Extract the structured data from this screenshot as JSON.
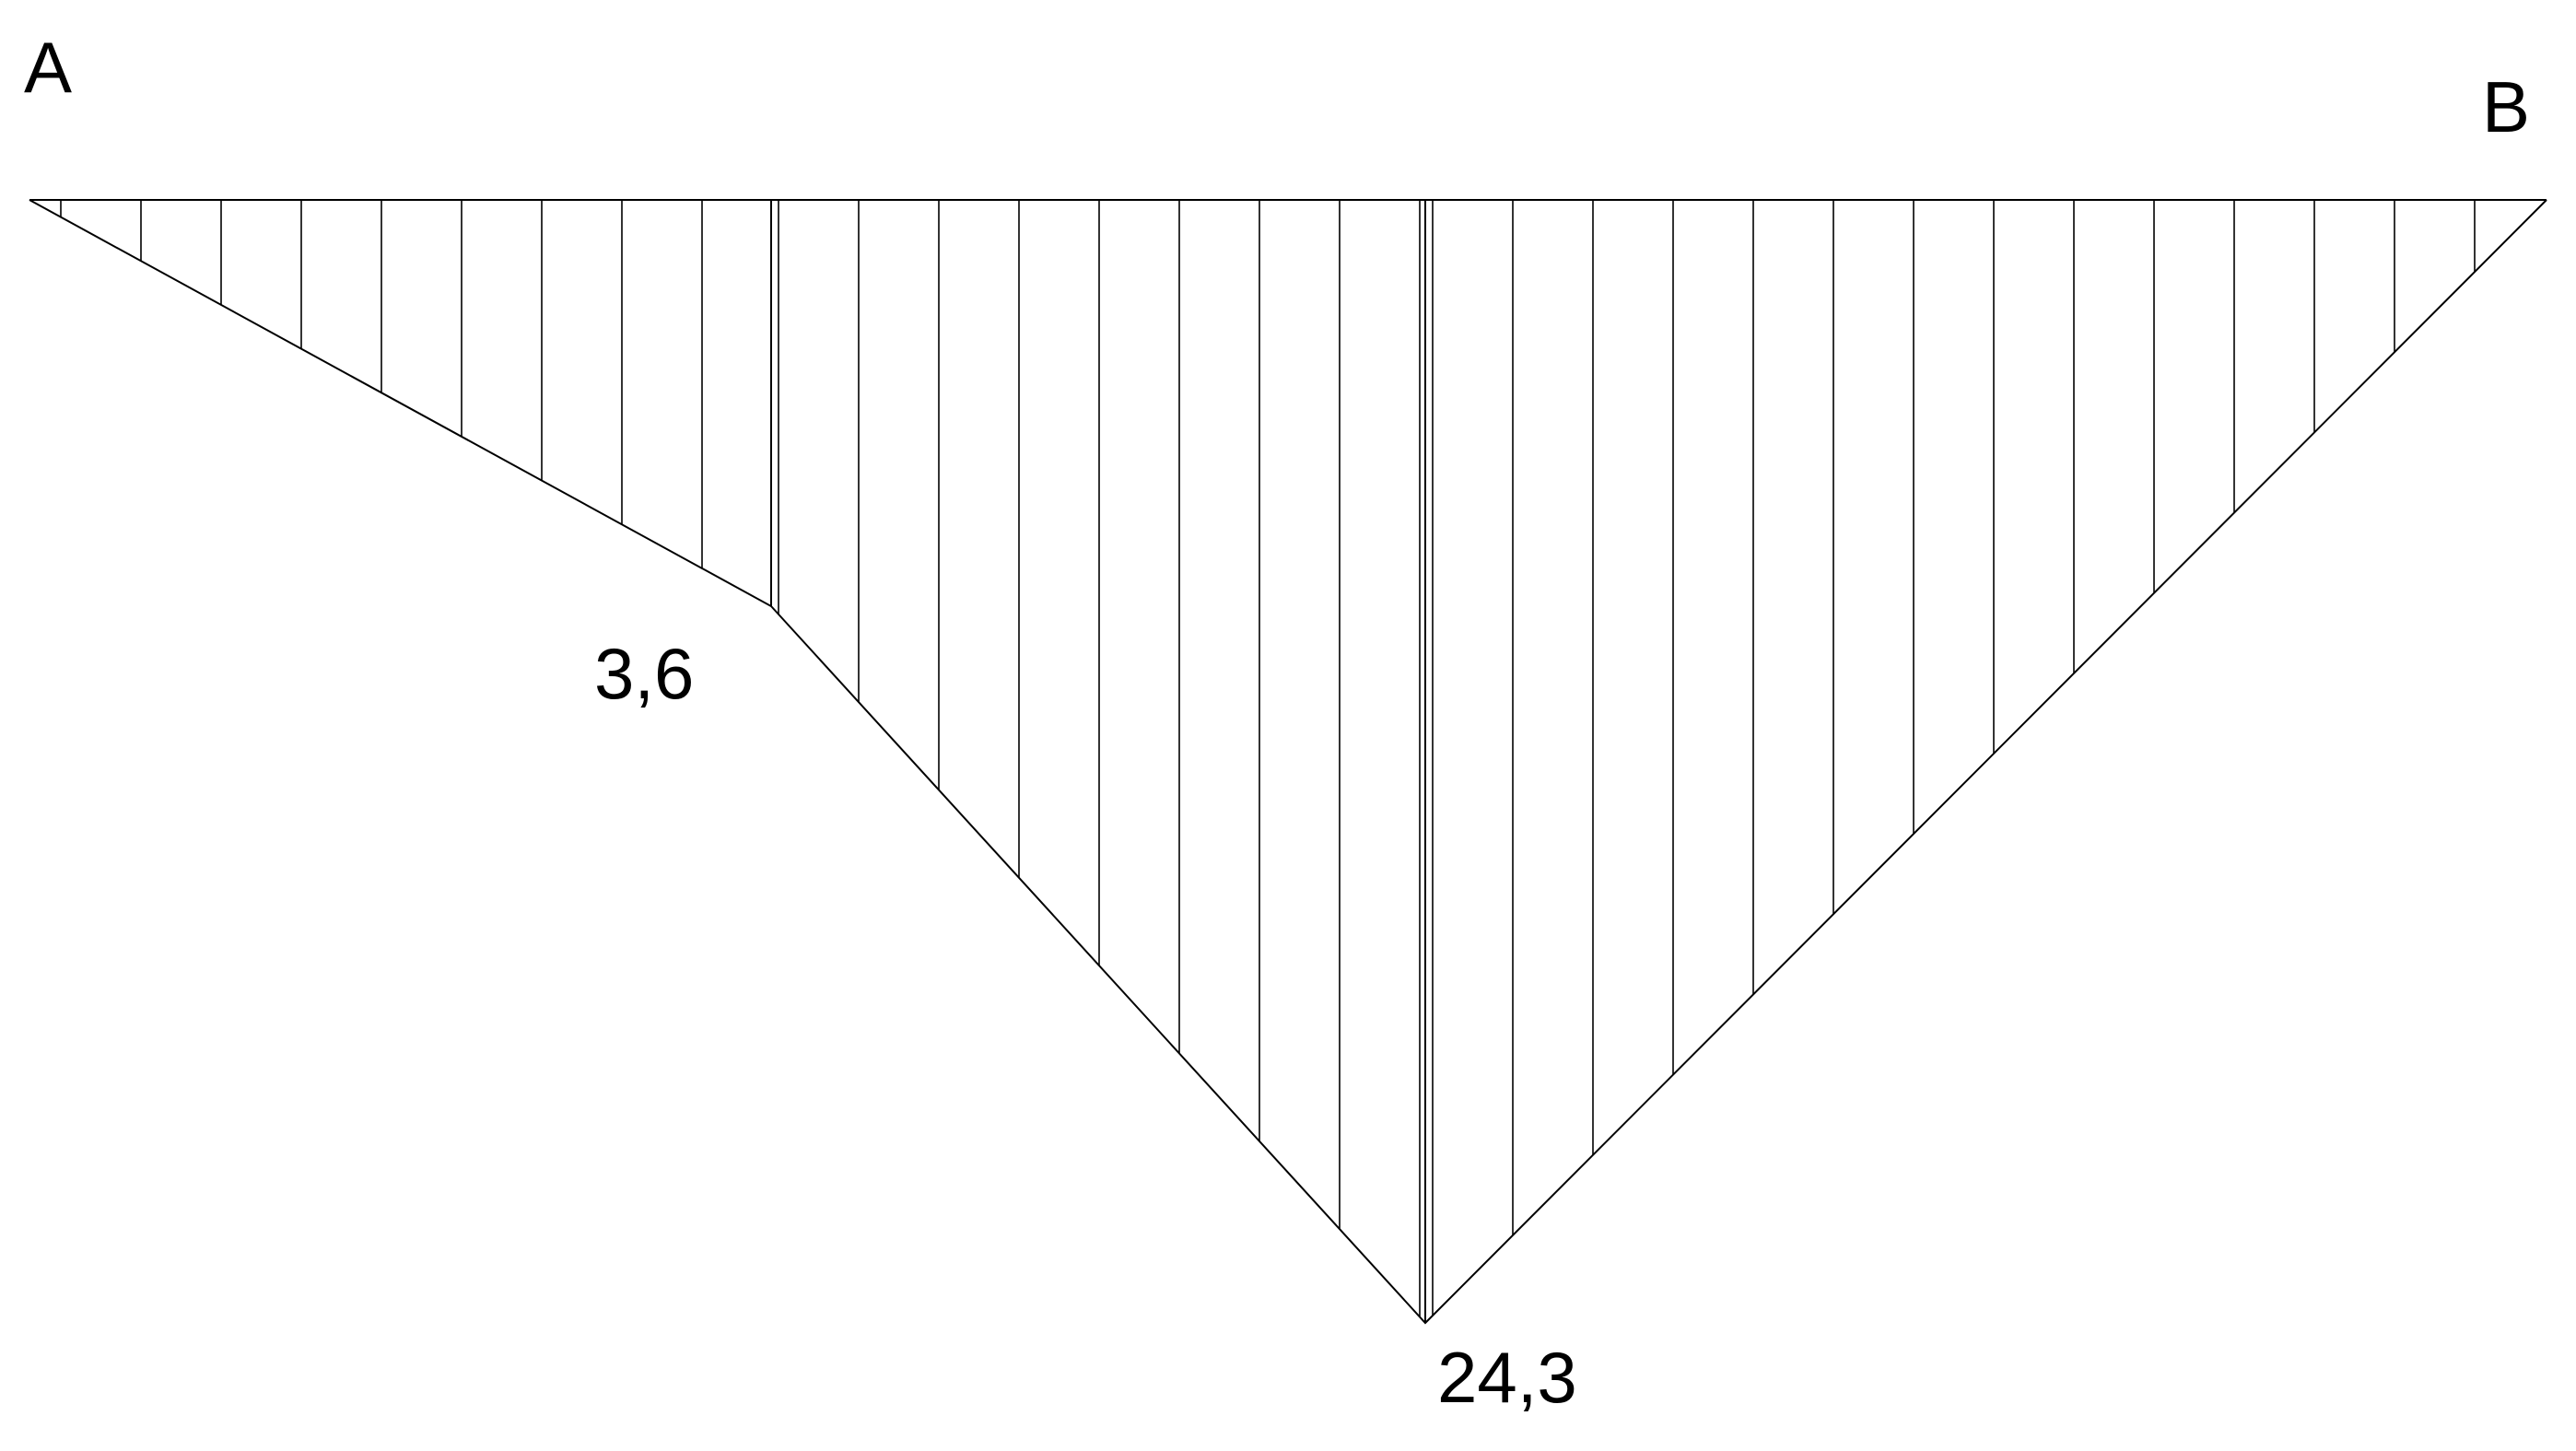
{
  "diagram": {
    "points": {
      "start": "A",
      "end": "B"
    },
    "values": {
      "intermediate": "3,6",
      "maximum": "24,3"
    },
    "colors": {
      "line": "#000000",
      "background": "#ffffff"
    }
  }
}
